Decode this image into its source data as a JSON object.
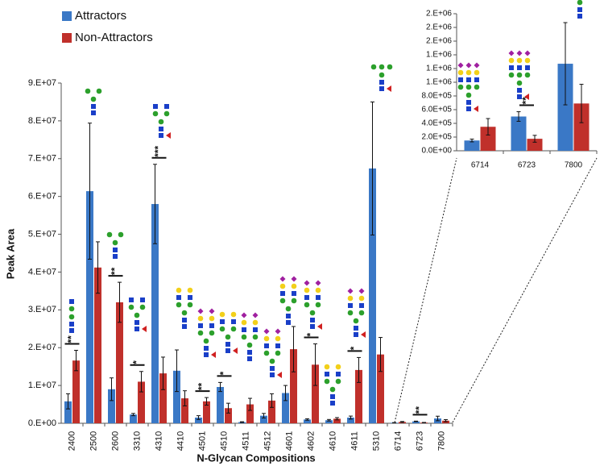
{
  "chart_data": [
    {
      "type": "bar",
      "x_label": "N-Glycan Compositions",
      "y_label": "Peak Area",
      "categories": [
        "2400",
        "2500",
        "2600",
        "3310",
        "4310",
        "4410",
        "4501",
        "4510",
        "4511",
        "4512",
        "4601",
        "4602",
        "4610",
        "4611",
        "5310",
        "6714",
        "6723",
        "7800"
      ],
      "series": [
        {
          "name": "Attractors",
          "color": "#3a78c6",
          "values": [
            5800000,
            61400000,
            9000000,
            2300000,
            58000000,
            13900000,
            1500000,
            9600000,
            300000,
            2000000,
            8000000,
            1000000,
            800000,
            1500000,
            67400000,
            150000,
            500000,
            1270000
          ],
          "errors": [
            2000000,
            18000000,
            3000000,
            300000,
            10500000,
            5500000,
            500000,
            1200000,
            100000,
            600000,
            2000000,
            200000,
            200000,
            400000,
            17600000,
            20000,
            70000,
            600000
          ]
        },
        {
          "name": "Non-Attractors",
          "color": "#c0302b",
          "values": [
            16600000,
            41200000,
            32000000,
            11000000,
            13200000,
            6600000,
            5800000,
            4000000,
            5000000,
            6000000,
            19600000,
            15500000,
            1200000,
            14100000,
            18200000,
            350000,
            175000,
            690000
          ],
          "errors": [
            2700000,
            6800000,
            5300000,
            2700000,
            4300000,
            2000000,
            1000000,
            1300000,
            1600000,
            1800000,
            6000000,
            5500000,
            300000,
            3300000,
            4500000,
            120000,
            50000,
            280000
          ]
        }
      ],
      "significance": [
        "**",
        null,
        "**",
        "*",
        "***",
        null,
        "**",
        "*",
        null,
        null,
        null,
        "*",
        null,
        "*",
        null,
        null,
        "**",
        null
      ],
      "ylim": [
        0,
        90000000
      ],
      "yticks": [
        {
          "value": 0,
          "label": "0.E+00"
        },
        {
          "value": 10000000,
          "label": "1.E+07"
        },
        {
          "value": 20000000,
          "label": "2.E+07"
        },
        {
          "value": 30000000,
          "label": "3.E+07"
        },
        {
          "value": 40000000,
          "label": "4.E+07"
        },
        {
          "value": 50000000,
          "label": "5.E+07"
        },
        {
          "value": 60000000,
          "label": "6.E+07"
        },
        {
          "value": 70000000,
          "label": "7.E+07"
        },
        {
          "value": 80000000,
          "label": "8.E+07"
        },
        {
          "value": 90000000,
          "label": "9.E+07"
        }
      ],
      "legend": "top-left"
    },
    {
      "type": "bar",
      "categories": [
        "6714",
        "6723",
        "7800"
      ],
      "series": [
        {
          "color": "#3a78c6",
          "values": [
            150000,
            500000,
            1270000
          ],
          "errors": [
            20000,
            70000,
            600000
          ]
        },
        {
          "color": "#c0302b",
          "values": [
            350000,
            175000,
            690000
          ],
          "errors": [
            120000,
            50000,
            280000
          ]
        }
      ],
      "significance": [
        null,
        "**",
        null
      ],
      "ylim": [
        0,
        2000000
      ],
      "yticks": [
        {
          "value": 0,
          "label": "0.0E+00"
        },
        {
          "value": 200000,
          "label": "2.0E+05"
        },
        {
          "value": 400000,
          "label": "4.0E+05"
        },
        {
          "value": 600000,
          "label": "6.0E+05"
        },
        {
          "value": 800000,
          "label": "8.0E+05"
        },
        {
          "value": 1000000,
          "label": "1.E+06"
        },
        {
          "value": 1200000,
          "label": "1.E+06"
        },
        {
          "value": 1400000,
          "label": "1.E+06"
        },
        {
          "value": 1600000,
          "label": "2.E+06"
        },
        {
          "value": 1800000,
          "label": "2.E+06"
        },
        {
          "value": 2000000,
          "label": "2.E+06"
        }
      ]
    }
  ]
}
